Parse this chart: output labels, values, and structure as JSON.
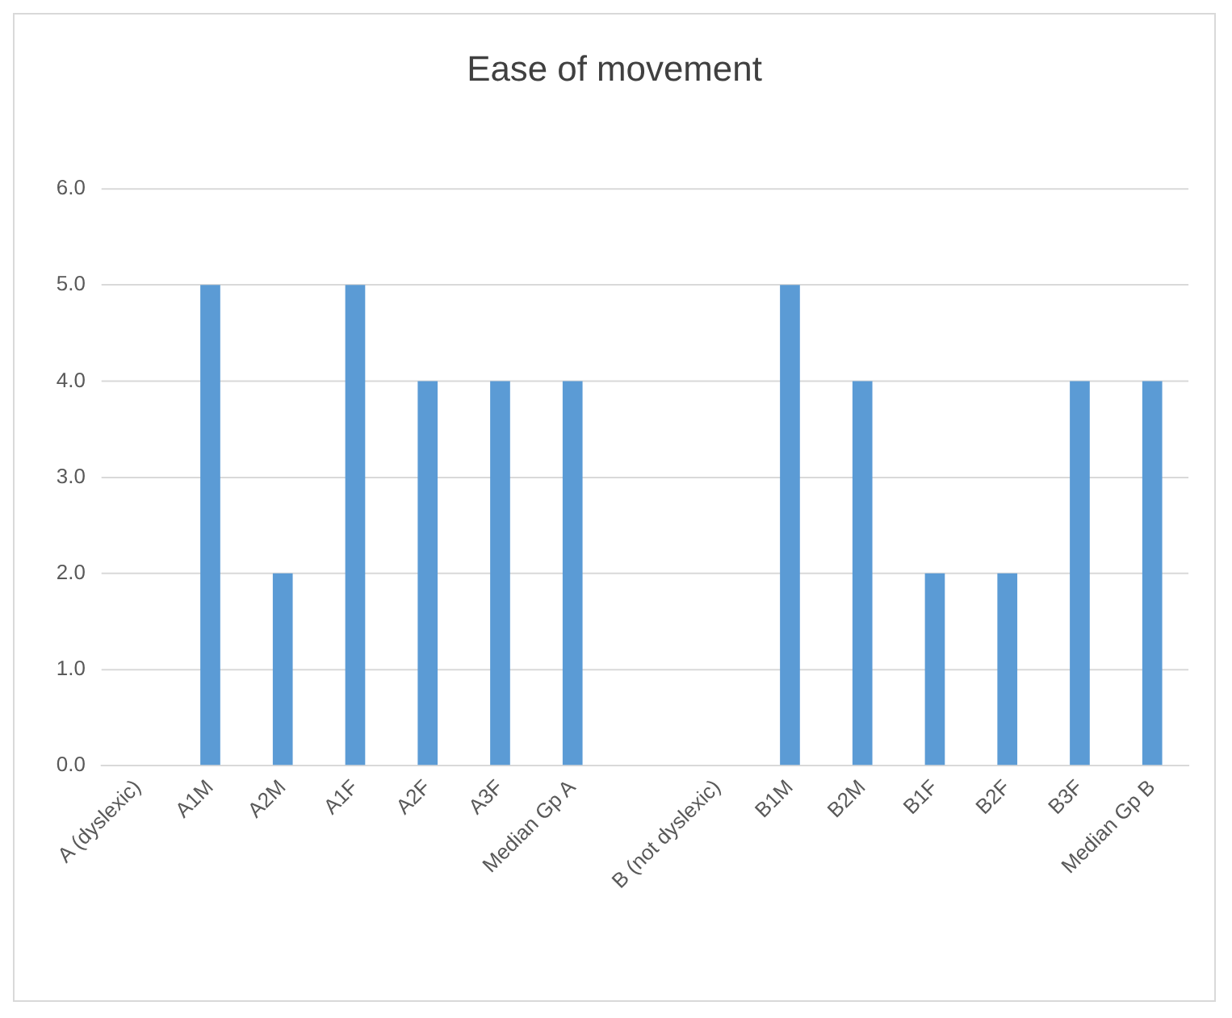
{
  "chart_data": {
    "type": "bar",
    "title": "Ease of movement",
    "categories": [
      "A (dyslexic)",
      "A1M",
      "A2M",
      "A1F",
      "A2F",
      "A3F",
      "Median Gp A",
      null,
      "B (not dyslexic)",
      "B1M",
      "B2M",
      "B1F",
      "B2F",
      "B3F",
      "Median Gp B"
    ],
    "values": [
      null,
      5,
      2,
      5,
      4,
      4,
      4,
      null,
      null,
      5,
      4,
      2,
      2,
      4,
      4
    ],
    "color": "#5b9bd5",
    "ylim": [
      0,
      6
    ],
    "yticks": [
      {
        "value": 0,
        "label": "0.0"
      },
      {
        "value": 1,
        "label": "1.0"
      },
      {
        "value": 2,
        "label": "2.0"
      },
      {
        "value": 3,
        "label": "3.0"
      },
      {
        "value": 4,
        "label": "4.0"
      },
      {
        "value": 5,
        "label": "5.0"
      },
      {
        "value": 6,
        "label": "6.0"
      }
    ],
    "grid": "y",
    "legend": false
  }
}
